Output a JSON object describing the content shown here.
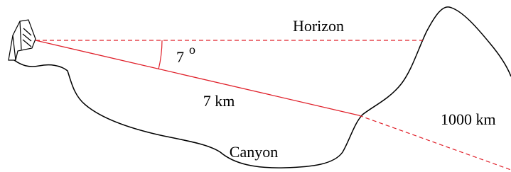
{
  "labels": {
    "horizon": "Horizon",
    "angle": "7",
    "angle_unit": "o",
    "near_distance": "7 km",
    "far_distance": "1000 km",
    "canyon": "Canyon"
  }
}
